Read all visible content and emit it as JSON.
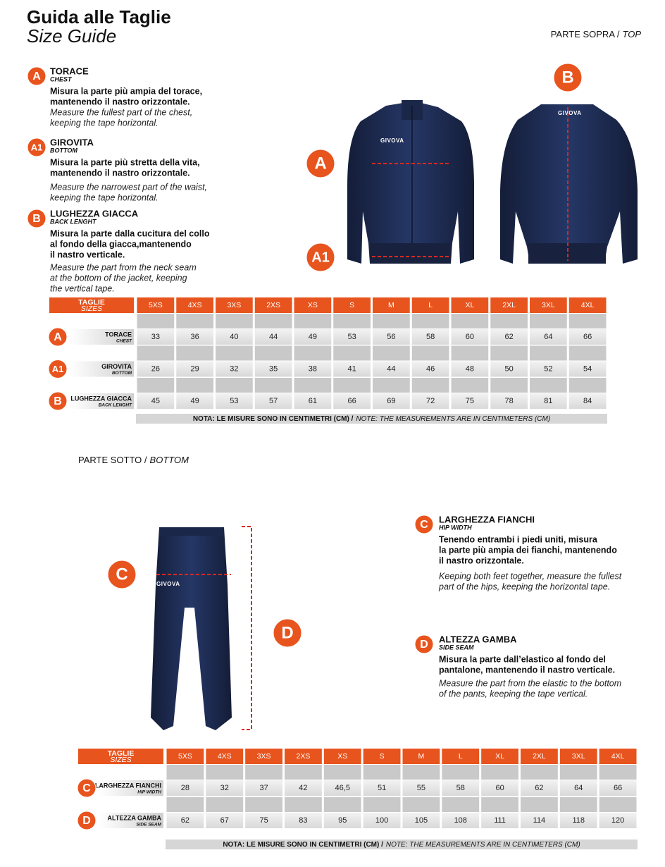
{
  "header": {
    "title": "Guida alle Taglie",
    "subtitle": "Size Guide"
  },
  "brand": "GIVOVA",
  "top": {
    "section": "PARTE SOPRA /",
    "section_en": "TOP",
    "measures": [
      {
        "badge": "A",
        "title": "TORACE",
        "title_en": "CHEST",
        "text": [
          "Misura la parte più ampia del torace,",
          "mantenendo il nastro orizzontale."
        ],
        "text_en": [
          "Measure the fullest part of the chest,",
          "keeping the tape horizontal."
        ]
      },
      {
        "badge": "A1",
        "title": "GIROVITA",
        "title_en": "BOTTOM",
        "text": [
          "Misura la parte più stretta della vita,",
          "mantenendo il nastro orizzontale."
        ],
        "text_en": [
          "Measure the narrowest part of the waist,",
          "keeping the tape horizontal."
        ]
      },
      {
        "badge": "B",
        "title": "LUGHEZZA GIACCA",
        "title_en": "BACK LENGHT",
        "text": [
          "Misura la parte dalla cucitura del collo",
          "al fondo della giacca,mantenendo",
          "il nastro verticale."
        ],
        "text_en": [
          "Measure the part from the neck seam",
          "at the bottom of the jacket, keeping",
          "the vertical tape."
        ]
      }
    ],
    "table": {
      "head": "TAGLIE",
      "head_en": "SIZES",
      "sizes": [
        "5XS",
        "4XS",
        "3XS",
        "2XS",
        "XS",
        "S",
        "M",
        "L",
        "XL",
        "2XL",
        "3XL",
        "4XL"
      ],
      "rows": [
        [
          33,
          36,
          40,
          44,
          49,
          53,
          56,
          58,
          60,
          62,
          64,
          66
        ],
        [
          26,
          29,
          32,
          35,
          38,
          41,
          44,
          46,
          48,
          50,
          52,
          54
        ],
        [
          45,
          49,
          53,
          57,
          61,
          66,
          69,
          72,
          75,
          78,
          81,
          84
        ]
      ]
    },
    "note": "NOTA: LE MISURE SONO IN CENTIMETRI (CM) /",
    "note_en": "NOTE: THE MEASUREMENTS ARE IN CENTIMETERS (CM)"
  },
  "bottom": {
    "section": "PARTE SOTTO /",
    "section_en": "BOTTOM",
    "measures": [
      {
        "badge": "C",
        "title": "LARGHEZZA FIANCHI",
        "title_en": "HIP WIDTH",
        "text": [
          "Tenendo entrambi i piedi uniti, misura",
          "la parte più ampia dei fianchi, mantenendo",
          "il nastro orizzontale."
        ],
        "text_en": [
          "Keeping both feet together, measure the fullest",
          "part of the hips, keeping the horizontal tape."
        ]
      },
      {
        "badge": "D",
        "title": "ALTEZZA GAMBA",
        "title_en": "SIDE SEAM",
        "text": [
          "Misura la parte dall’elastico al fondo del",
          "pantalone, mantenendo il nastro verticale."
        ],
        "text_en": [
          "Measure the part from the elastic to the bottom",
          "of the pants, keeping the tape vertical."
        ]
      }
    ],
    "table": {
      "head": "TAGLIE",
      "head_en": "SIZES",
      "sizes": [
        "5XS",
        "4XS",
        "3XS",
        "2XS",
        "XS",
        "S",
        "M",
        "L",
        "XL",
        "2XL",
        "3XL",
        "4XL"
      ],
      "rows": [
        [
          28,
          32,
          37,
          42,
          "46,5",
          51,
          55,
          58,
          60,
          62,
          64,
          66
        ],
        [
          62,
          67,
          75,
          83,
          95,
          100,
          105,
          108,
          111,
          114,
          118,
          120
        ]
      ]
    },
    "note": "NOTA: LE MISURE SONO IN CENTIMETRI (CM) /",
    "note_en": "NOTE: THE MEASUREMENTS ARE IN CENTIMETERS (CM)"
  }
}
